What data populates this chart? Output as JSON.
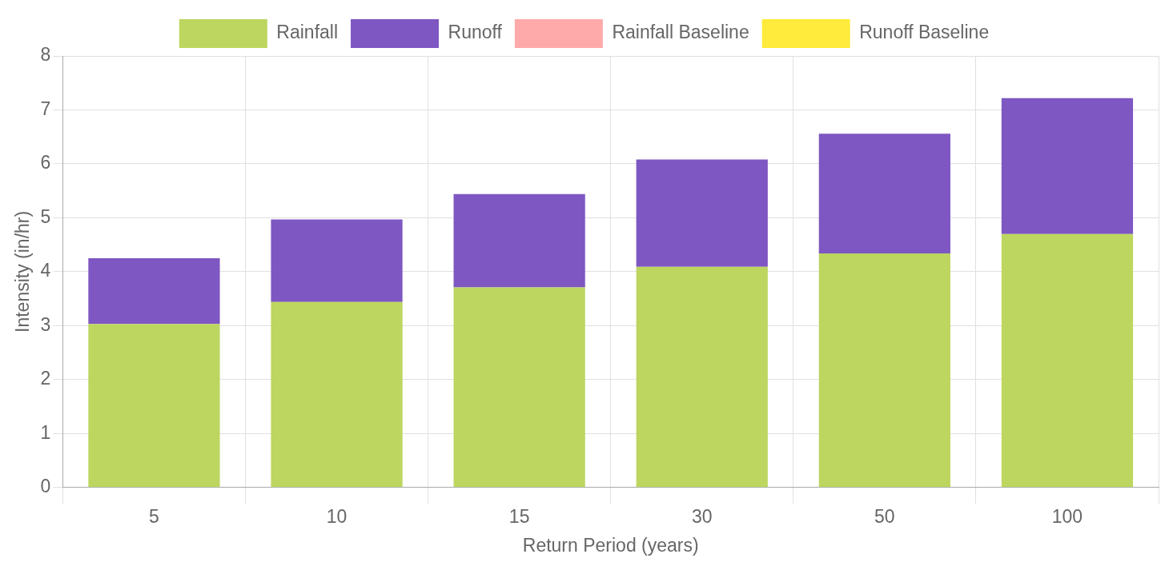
{
  "chart_data": {
    "type": "bar",
    "stacked": true,
    "xlabel": "Return Period (years)",
    "ylabel": "Intensity (in/hr)",
    "categories": [
      "5",
      "10",
      "15",
      "30",
      "50",
      "100"
    ],
    "series": [
      {
        "name": "Rainfall",
        "color": "#bcd65f",
        "values": [
          3.03,
          3.44,
          3.71,
          4.09,
          4.34,
          4.7
        ]
      },
      {
        "name": "Runoff",
        "color": "#7e57c2",
        "values": [
          1.22,
          1.53,
          1.73,
          1.99,
          2.22,
          2.52
        ]
      },
      {
        "name": "Rainfall Baseline",
        "color": "#ffaaaa",
        "values": [
          null,
          null,
          null,
          null,
          null,
          null
        ]
      },
      {
        "name": "Runoff Baseline",
        "color": "#ffeb3b",
        "values": [
          null,
          null,
          null,
          null,
          null,
          null
        ]
      }
    ],
    "ylim": [
      0,
      8
    ],
    "yticks": [
      0,
      1,
      2,
      3,
      4,
      5,
      6,
      7,
      8
    ],
    "grid": true,
    "legend": "top"
  }
}
